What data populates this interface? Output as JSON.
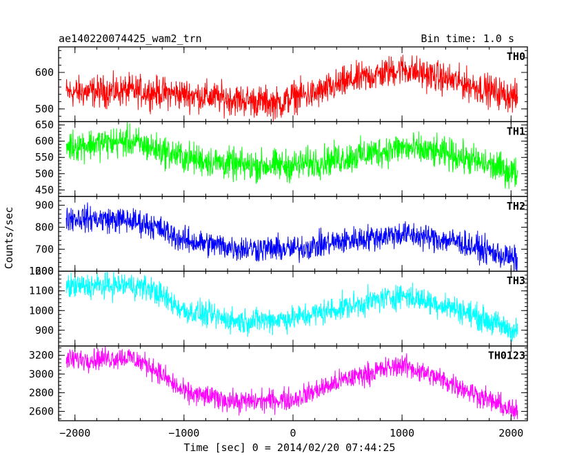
{
  "chart_data": {
    "type": "line",
    "title": "ae140220074425_wam2_trn",
    "subtitle": "Bin time: 1.0 s",
    "ylabel": "Counts/sec",
    "xlabel": "Time [sec] 0 = 2014/02/20 07:44:25",
    "xlim": [
      -2150,
      2150
    ],
    "x_range_data": [
      -2080,
      2060
    ],
    "xticks": [
      -2000,
      -1000,
      0,
      1000,
      2000
    ],
    "xtick_labels": [
      "−2000",
      "−1000",
      "0",
      "1000",
      "2000"
    ],
    "series": [
      {
        "name": "TH0",
        "color": "#ff0000",
        "ylim": [
          465,
          670
        ],
        "yticks": [
          500,
          600
        ],
        "envelope_x": [
          -2080,
          -1500,
          -1000,
          -500,
          -100,
          0,
          200,
          500,
          1000,
          1500,
          2060
        ],
        "envelope_center": [
          545,
          550,
          540,
          525,
          515,
          535,
          540,
          575,
          610,
          575,
          530
        ],
        "noise_amplitude": 40
      },
      {
        "name": "TH1",
        "color": "#00ff00",
        "ylim": [
          430,
          660
        ],
        "yticks": [
          450,
          500,
          550,
          600,
          650
        ],
        "envelope_x": [
          -2080,
          -1500,
          -1000,
          -500,
          0,
          500,
          1000,
          1500,
          2060
        ],
        "envelope_center": [
          585,
          600,
          550,
          525,
          525,
          550,
          580,
          555,
          500
        ],
        "noise_amplitude": 45
      },
      {
        "name": "TH2",
        "color": "#0000ff",
        "ylim": [
          600,
          940
        ],
        "yticks": [
          600,
          700,
          800,
          900
        ],
        "envelope_x": [
          -2080,
          -1500,
          -1300,
          -1000,
          -500,
          0,
          500,
          1000,
          1500,
          2060
        ],
        "envelope_center": [
          845,
          830,
          810,
          740,
          705,
          700,
          740,
          770,
          735,
          650
        ],
        "noise_amplitude": 55
      },
      {
        "name": "TH3",
        "color": "#00ffff",
        "ylim": [
          820,
          1200
        ],
        "yticks": [
          900,
          1000,
          1100,
          1200
        ],
        "envelope_x": [
          -2080,
          -1500,
          -1300,
          -1000,
          -500,
          0,
          500,
          1000,
          1500,
          2060
        ],
        "envelope_center": [
          1120,
          1130,
          1110,
          1000,
          945,
          960,
          1020,
          1080,
          1010,
          890
        ],
        "noise_amplitude": 60
      },
      {
        "name": "TH0123",
        "color": "#ff00ff",
        "ylim": [
          2500,
          3300
        ],
        "yticks": [
          2600,
          2800,
          3000,
          3200
        ],
        "envelope_x": [
          -2080,
          -1500,
          -1300,
          -1000,
          -500,
          0,
          500,
          1000,
          1500,
          2060
        ],
        "envelope_center": [
          3150,
          3180,
          3080,
          2800,
          2700,
          2730,
          2950,
          3100,
          2880,
          2580
        ],
        "noise_amplitude": 110
      }
    ],
    "grid": false,
    "legend": "panel labels top-right"
  }
}
